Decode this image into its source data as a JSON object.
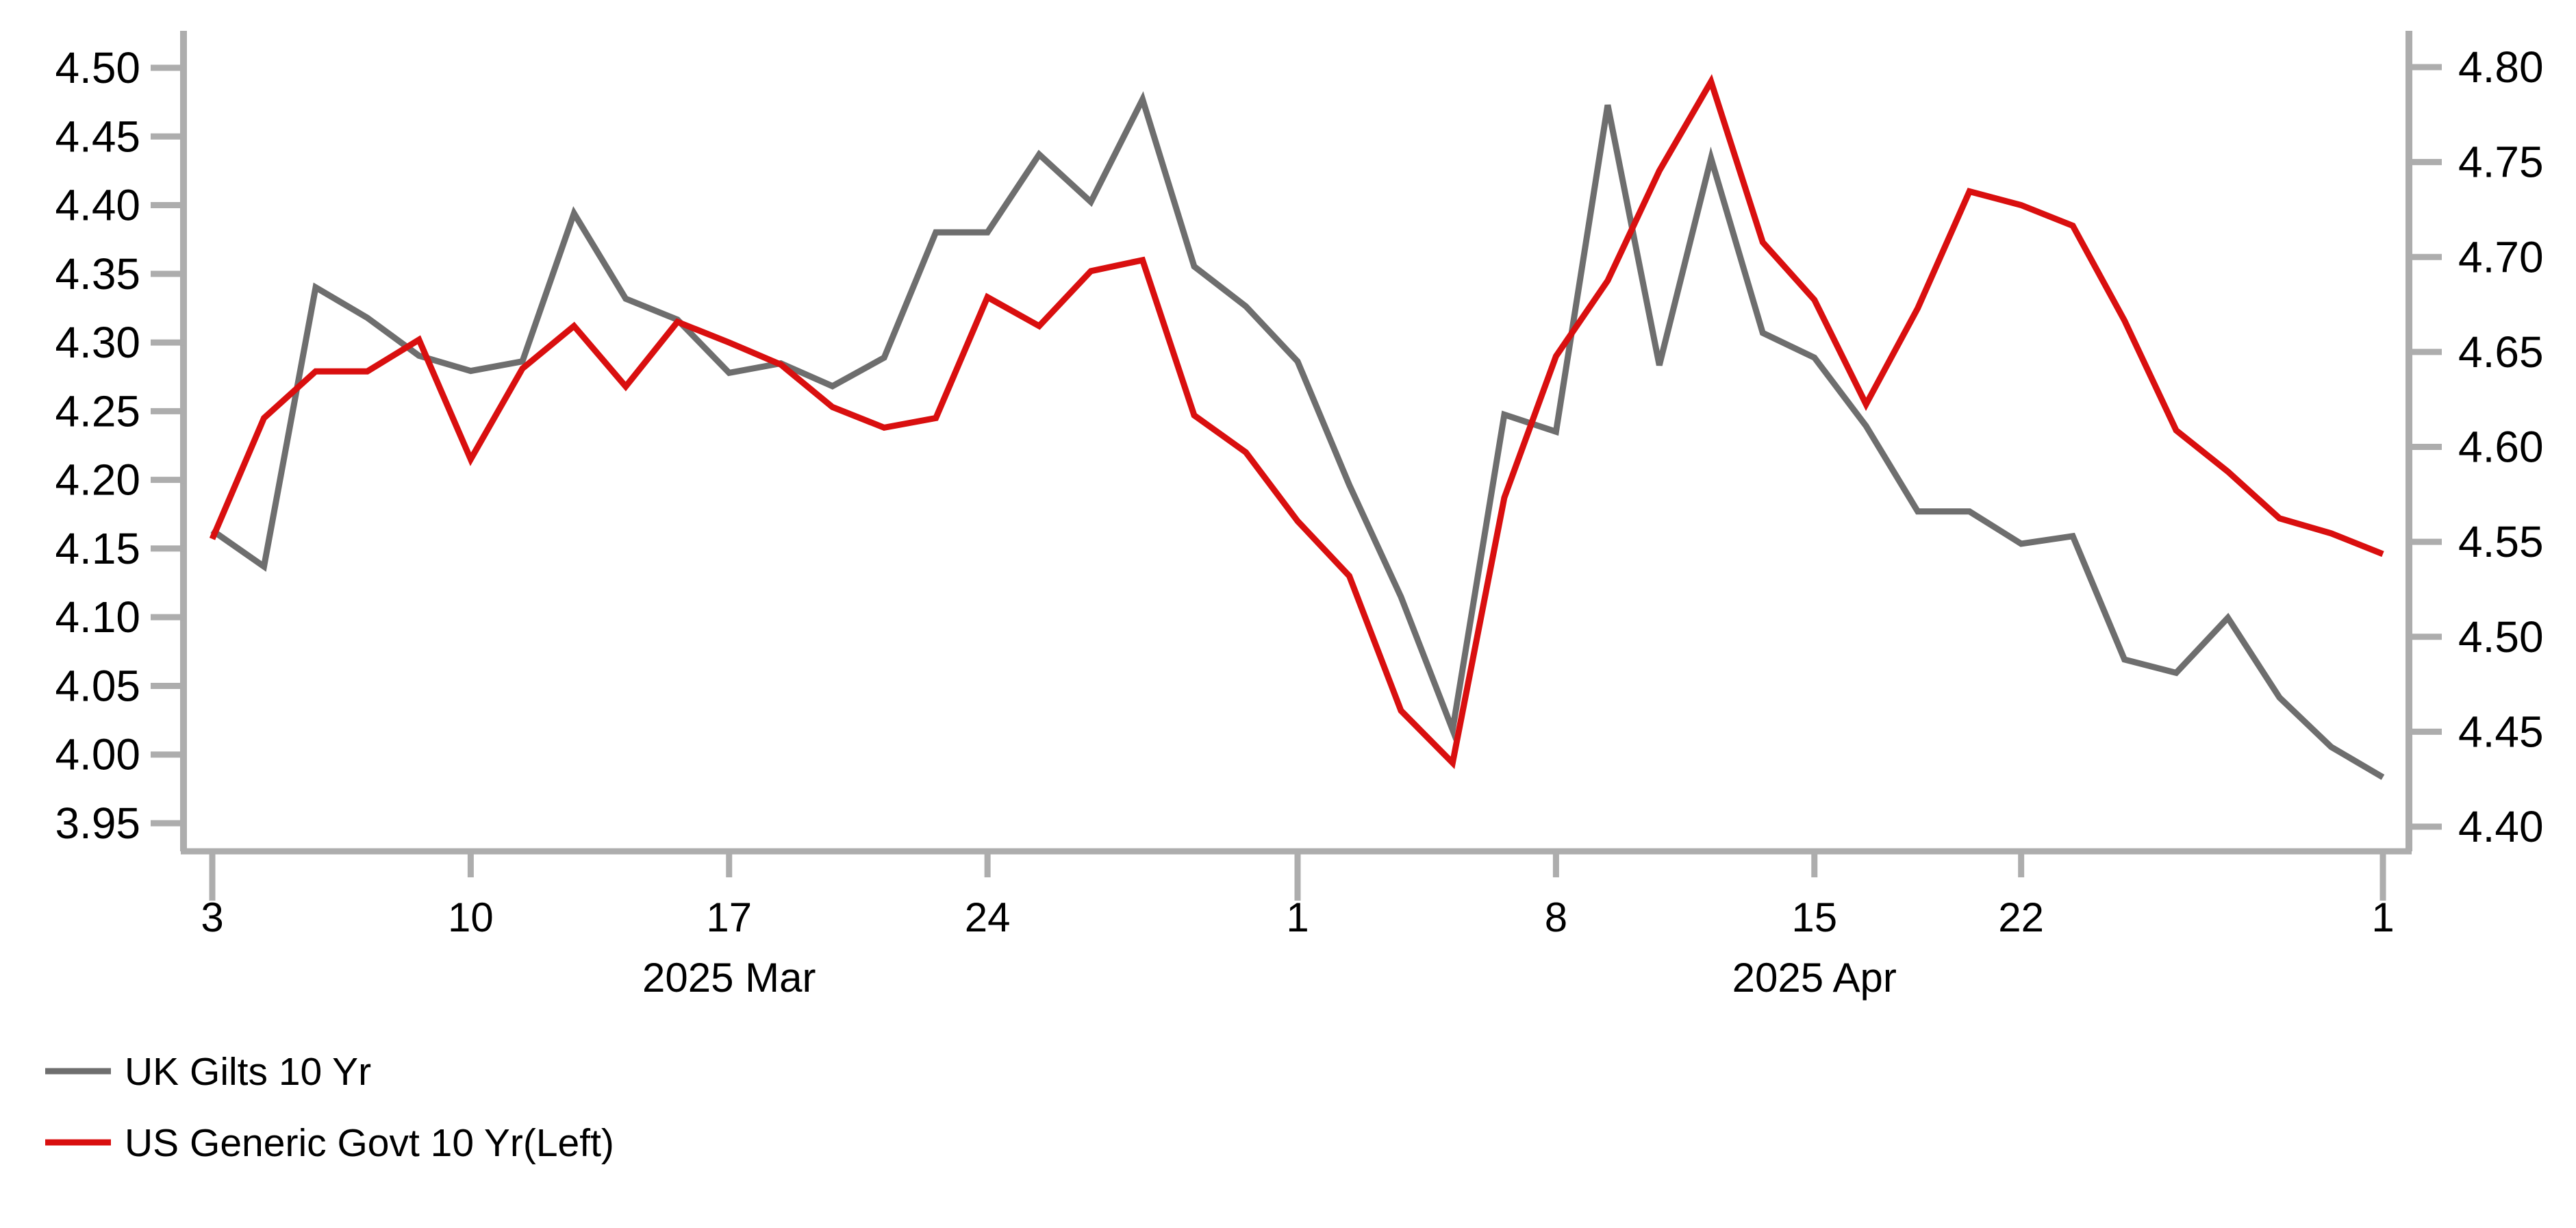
{
  "chart_data": {
    "type": "line",
    "title": "",
    "x_dates": [
      "2025-03-03",
      "2025-03-04",
      "2025-03-05",
      "2025-03-06",
      "2025-03-07",
      "2025-03-10",
      "2025-03-11",
      "2025-03-12",
      "2025-03-13",
      "2025-03-14",
      "2025-03-17",
      "2025-03-18",
      "2025-03-19",
      "2025-03-20",
      "2025-03-21",
      "2025-03-24",
      "2025-03-25",
      "2025-03-26",
      "2025-03-27",
      "2025-03-28",
      "2025-03-31",
      "2025-04-01",
      "2025-04-02",
      "2025-04-03",
      "2025-04-04",
      "2025-04-07",
      "2025-04-08",
      "2025-04-09",
      "2025-04-10",
      "2025-04-11",
      "2025-04-14",
      "2025-04-15",
      "2025-04-16",
      "2025-04-17",
      "2025-04-21",
      "2025-04-22",
      "2025-04-23",
      "2025-04-24",
      "2025-04-25",
      "2025-04-28",
      "2025-04-29",
      "2025-04-30",
      "2025-05-01"
    ],
    "x_tick_indices": [
      0,
      5,
      10,
      15,
      21,
      26,
      31,
      35,
      42
    ],
    "x_tick_labels": [
      "3",
      "10",
      "17",
      "24",
      "1",
      "8",
      "15",
      "22",
      "1"
    ],
    "x_long_tick_indices": [
      0,
      21,
      42
    ],
    "month_labels": [
      {
        "text": "2025 Mar",
        "index": 10
      },
      {
        "text": "2025 Apr",
        "index": 31
      }
    ],
    "left_axis": {
      "min": 3.95,
      "max": 4.5,
      "step": 0.05,
      "ticks": [
        4.5,
        4.45,
        4.4,
        4.35,
        4.3,
        4.25,
        4.2,
        4.15,
        4.1,
        4.05,
        4.0,
        3.95
      ]
    },
    "right_axis": {
      "min": 4.4,
      "max": 4.8,
      "step": 0.05,
      "ticks": [
        4.8,
        4.75,
        4.7,
        4.65,
        4.6,
        4.55,
        4.5,
        4.45,
        4.4
      ]
    },
    "series": [
      {
        "name": "UK Gilts 10 Yr",
        "axis": "right",
        "color": "#6e6e6e",
        "values": [
          4.556,
          4.537,
          4.684,
          4.668,
          4.648,
          4.64,
          4.645,
          4.723,
          4.678,
          4.667,
          4.639,
          4.644,
          4.632,
          4.647,
          4.713,
          4.713,
          4.754,
          4.729,
          4.783,
          4.695,
          4.674,
          4.645,
          4.58,
          4.521,
          4.451,
          4.617,
          4.608,
          4.78,
          4.643,
          4.752,
          4.66,
          4.647,
          4.611,
          4.566,
          4.566,
          4.549,
          4.553,
          4.488,
          4.481,
          4.51,
          4.468,
          4.442,
          4.426
        ]
      },
      {
        "name": "US Generic Govt 10 Yr(Left)",
        "axis": "left",
        "color": "#d90f0f",
        "values": [
          4.157,
          4.245,
          4.279,
          4.279,
          4.302,
          4.215,
          4.281,
          4.312,
          4.268,
          4.315,
          4.3,
          4.284,
          4.253,
          4.238,
          4.245,
          4.333,
          4.312,
          4.352,
          4.36,
          4.247,
          4.22,
          4.17,
          4.13,
          4.032,
          3.994,
          4.187,
          4.29,
          4.345,
          4.425,
          4.49,
          4.373,
          4.331,
          4.255,
          4.325,
          4.41,
          4.4,
          4.385,
          4.316,
          4.236,
          4.206,
          4.172,
          4.161,
          4.146
        ]
      }
    ],
    "legend": [
      {
        "label": "UK Gilts 10 Yr"
      },
      {
        "label": "US Generic Govt 10 Yr(Left)"
      }
    ],
    "colors": {
      "axis": "#adadad",
      "tick_text": "#000000",
      "background": "#ffffff"
    },
    "grid": false,
    "legend_position": "bottom-left"
  }
}
